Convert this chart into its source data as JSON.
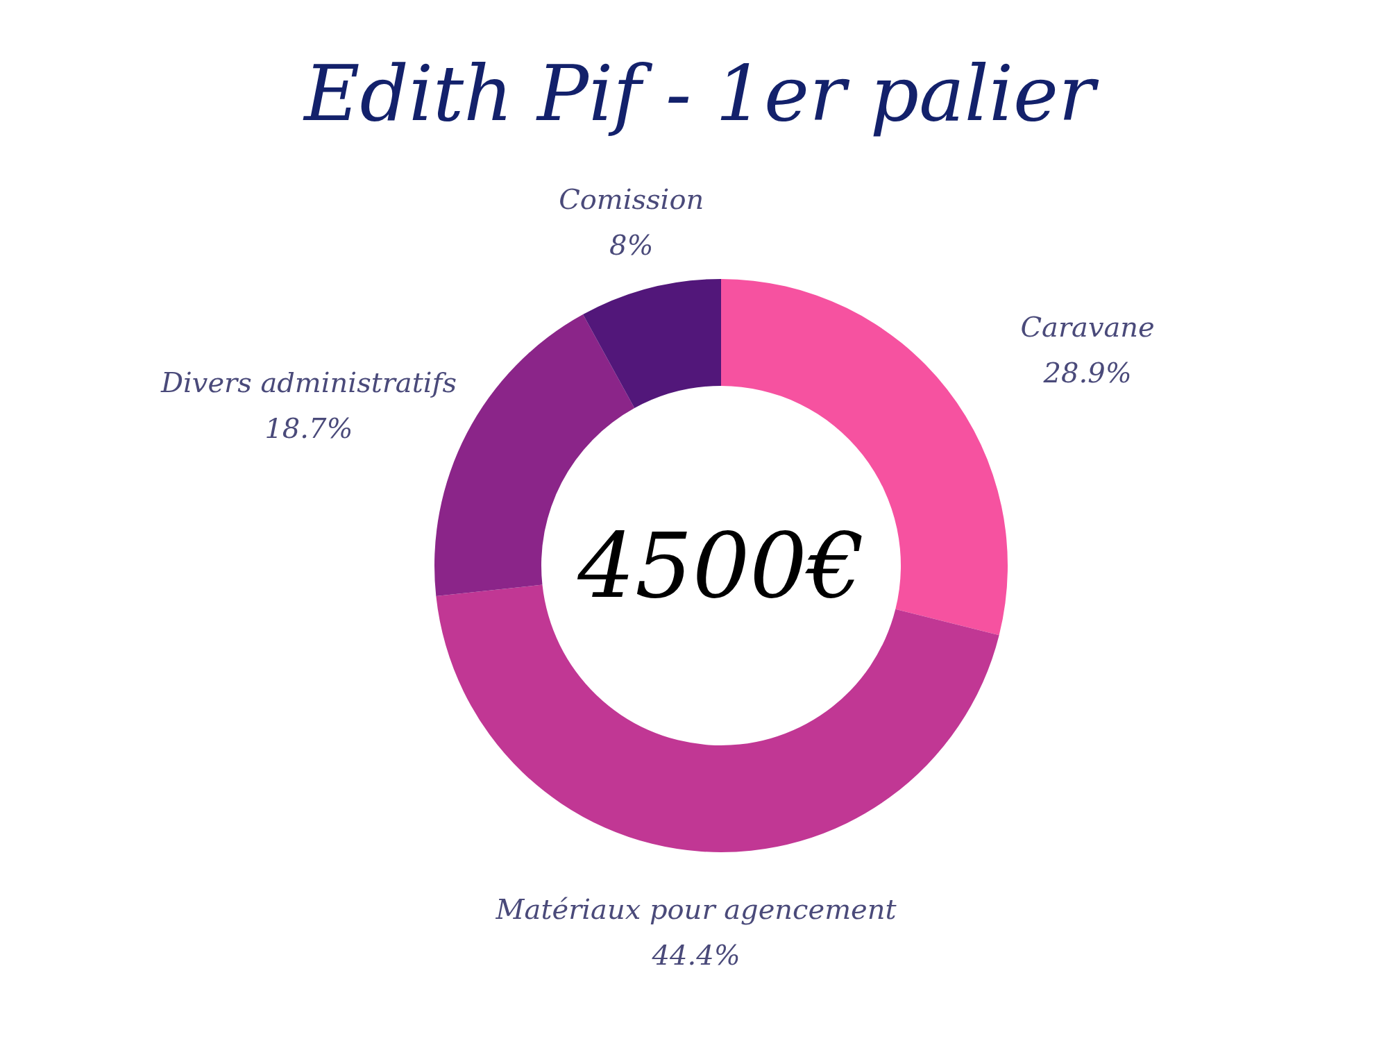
{
  "chart_data": {
    "type": "donut",
    "title": "Edith Pif - 1er palier",
    "categories": [
      "Caravane",
      "Matériaux pour agencement",
      "Divers administratifs",
      "Comission"
    ],
    "values": [
      28.9,
      44.4,
      18.7,
      8
    ],
    "colors": [
      "#f652a0",
      "#c13794",
      "#8b2589",
      "#52177a"
    ],
    "value_labels": [
      "28.9%",
      "44.4%",
      "18.7%",
      "8%"
    ],
    "annotations": [
      "4500€"
    ],
    "legend": false
  }
}
